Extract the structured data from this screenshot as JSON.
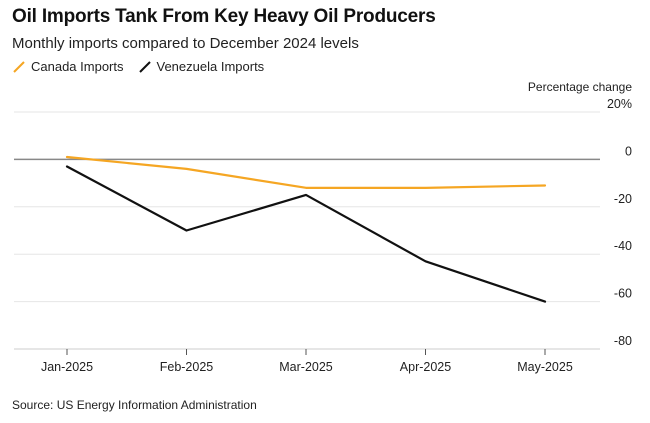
{
  "title": "Oil Imports Tank From Key Heavy Oil Producers",
  "subtitle": "Monthly imports compared to December 2024 levels",
  "source": "Source: US Energy Information Administration",
  "colors": {
    "canada": "#f5a623",
    "venezuela": "#111111",
    "zero_line": "#888888",
    "grid": "#e6e6e6"
  },
  "chart_data": {
    "type": "line",
    "categories": [
      "Jan-2025",
      "Feb-2025",
      "Mar-2025",
      "Apr-2025",
      "May-2025"
    ],
    "series": [
      {
        "name": "Canada Imports",
        "values": [
          1,
          -4,
          -12,
          -12,
          -11
        ]
      },
      {
        "name": "Venezuela Imports",
        "values": [
          -3,
          -30,
          -15,
          -43,
          -60
        ]
      }
    ],
    "ylabel": "Percentage change",
    "ylim": [
      -80,
      20
    ],
    "yticks": [
      20,
      0,
      -20,
      -40,
      -60,
      -80
    ],
    "ytick_labels": [
      "20%",
      "0",
      "-20",
      "-40",
      "-60",
      "-80"
    ],
    "grid": true,
    "legend_position": "top-left"
  }
}
